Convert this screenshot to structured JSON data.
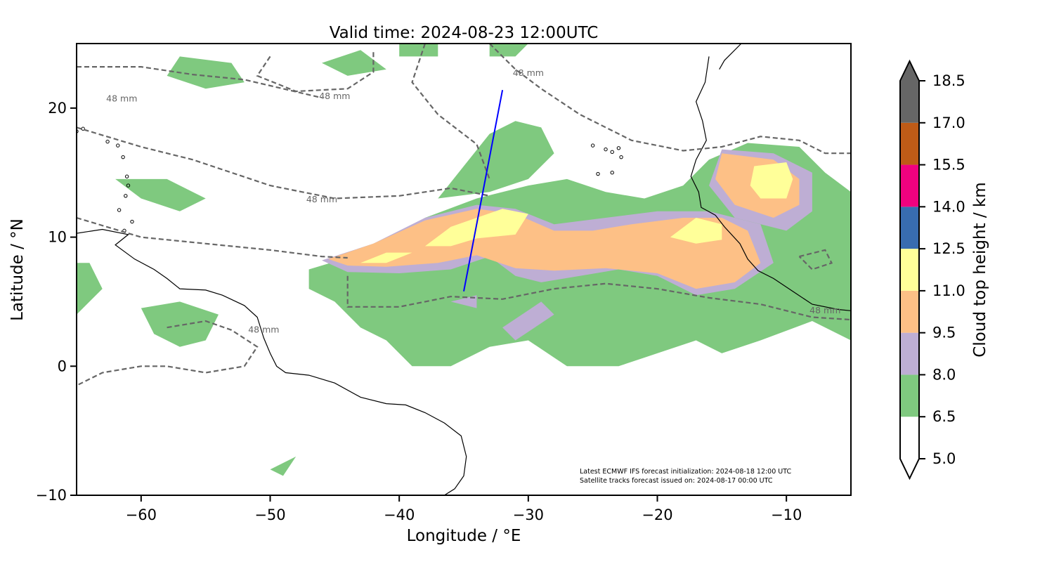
{
  "title": "Valid time: 2024-08-23 12:00UTC",
  "xlabel": "Longitude / °E",
  "ylabel": "Latitude / °N",
  "xlim": [
    -65,
    -5
  ],
  "ylim": [
    -10,
    25
  ],
  "xticks": [
    {
      "value": -60,
      "label": "−60"
    },
    {
      "value": -50,
      "label": "−50"
    },
    {
      "value": -40,
      "label": "−40"
    },
    {
      "value": -30,
      "label": "−30"
    },
    {
      "value": -20,
      "label": "−20"
    },
    {
      "value": -10,
      "label": "−10"
    }
  ],
  "yticks": [
    {
      "value": 20,
      "label": "20"
    },
    {
      "value": 10,
      "label": "10"
    },
    {
      "value": 0,
      "label": "0"
    },
    {
      "value": -10,
      "label": "−10"
    }
  ],
  "contour_label": "48 mm",
  "contour_label_positions": [
    [
      -61.5,
      20.5
    ],
    [
      -45,
      20.7
    ],
    [
      -46,
      12.7
    ],
    [
      -30,
      22.5
    ],
    [
      -7,
      4.1
    ],
    [
      -50.5,
      2.6
    ]
  ],
  "footnote": {
    "line1": "Latest ECMWF IFS forecast initialization: 2024-08-18 12:00 UTC",
    "line2": "Satellite tracks forecast issued on: 2024-08-17 00:00 UTC"
  },
  "satellite_track": [
    [
      -35,
      5.8
    ],
    [
      -32,
      21.4
    ]
  ],
  "colorbar": {
    "label": "Cloud top height / km",
    "extend": "both",
    "levels": [
      "5.0",
      "6.5",
      "8.0",
      "9.5",
      "11.0",
      "12.5",
      "14.0",
      "15.5",
      "17.0",
      "18.5"
    ],
    "colors": [
      "#ffffff",
      "#7fc97f",
      "#beaed4",
      "#fdc086",
      "#ffff99",
      "#386cb0",
      "#f0027f",
      "#bf5b17",
      "#666666"
    ]
  },
  "colors": {
    "coastline": "#000000",
    "contour": "#666666",
    "track": "#0000ff",
    "low_cloud": "#7fc97f",
    "mid_cloud": "#beaed4",
    "high_cloud": "#fdc086",
    "top_cloud": "#ffff99"
  },
  "cloud_regions": {
    "low": [
      [
        [
          -47,
          7.5
        ],
        [
          -42,
          9
        ],
        [
          -38,
          11.5
        ],
        [
          -34,
          13
        ],
        [
          -30,
          14
        ],
        [
          -27,
          14.5
        ],
        [
          -24,
          13.5
        ],
        [
          -21,
          13
        ],
        [
          -18,
          14
        ],
        [
          -16,
          16
        ],
        [
          -13,
          17.3
        ],
        [
          -9,
          17
        ],
        [
          -7,
          15
        ],
        [
          -5,
          13.5
        ],
        [
          -5,
          2
        ],
        [
          -8,
          3.5
        ],
        [
          -12,
          2
        ],
        [
          -15,
          1
        ],
        [
          -17,
          2
        ],
        [
          -20,
          1
        ],
        [
          -23,
          0
        ],
        [
          -27,
          0
        ],
        [
          -30,
          2
        ],
        [
          -33,
          1.5
        ],
        [
          -36,
          0
        ],
        [
          -39,
          0
        ],
        [
          -41,
          2
        ],
        [
          -43,
          3
        ],
        [
          -45,
          5
        ],
        [
          -47,
          6
        ]
      ],
      [
        [
          -37,
          13
        ],
        [
          -35,
          15.5
        ],
        [
          -33,
          18
        ],
        [
          -31,
          19
        ],
        [
          -29,
          18.5
        ],
        [
          -28,
          16.5
        ],
        [
          -30,
          14.5
        ],
        [
          -33,
          13.5
        ]
      ],
      [
        [
          -55,
          2
        ],
        [
          -54,
          4
        ],
        [
          -57,
          5
        ],
        [
          -60,
          4.5
        ],
        [
          -59,
          2.5
        ],
        [
          -57,
          1.5
        ]
      ],
      [
        [
          -65,
          4
        ],
        [
          -63,
          6
        ],
        [
          -64,
          8
        ],
        [
          -65,
          8
        ]
      ],
      [
        [
          -62,
          14.5
        ],
        [
          -58,
          14.5
        ],
        [
          -55,
          13
        ],
        [
          -57,
          12
        ],
        [
          -60,
          13
        ]
      ],
      [
        [
          -57,
          24
        ],
        [
          -53,
          23.5
        ],
        [
          -52,
          22
        ],
        [
          -55,
          21.5
        ],
        [
          -58,
          22.5
        ]
      ],
      [
        [
          -46,
          23.5
        ],
        [
          -43,
          24.5
        ],
        [
          -41,
          23
        ],
        [
          -44,
          22.5
        ]
      ],
      [
        [
          -40,
          25
        ],
        [
          -37,
          25
        ],
        [
          -37,
          24
        ],
        [
          -40,
          24
        ]
      ],
      [
        [
          -33,
          25
        ],
        [
          -30,
          25
        ],
        [
          -31,
          24
        ],
        [
          -33,
          24
        ]
      ],
      [
        [
          -50,
          -8
        ],
        [
          -48,
          -7
        ],
        [
          -49,
          -8.5
        ]
      ]
    ],
    "mid": [
      [
        [
          -46,
          8.2
        ],
        [
          -42,
          9.5
        ],
        [
          -38,
          11.5
        ],
        [
          -34,
          12.5
        ],
        [
          -31,
          12.2
        ],
        [
          -28,
          11
        ],
        [
          -24,
          11.5
        ],
        [
          -20,
          12
        ],
        [
          -16,
          12
        ],
        [
          -12,
          11
        ],
        [
          -11,
          8
        ],
        [
          -14,
          6
        ],
        [
          -17,
          5.5
        ],
        [
          -20,
          7
        ],
        [
          -23,
          7.5
        ],
        [
          -26,
          7
        ],
        [
          -29,
          6.5
        ],
        [
          -31,
          7
        ],
        [
          -33,
          8.5
        ],
        [
          -36,
          7.5
        ],
        [
          -40,
          7.2
        ],
        [
          -44,
          7.3
        ]
      ],
      [
        [
          -15,
          16.8
        ],
        [
          -11,
          16.5
        ],
        [
          -8,
          15
        ],
        [
          -8,
          12
        ],
        [
          -10,
          10.5
        ],
        [
          -14,
          11.5
        ],
        [
          -16,
          14
        ]
      ],
      [
        [
          -34,
          4.5
        ],
        [
          -36,
          5
        ],
        [
          -34,
          5.5
        ]
      ],
      [
        [
          -31,
          2
        ],
        [
          -28,
          4
        ],
        [
          -29,
          5
        ],
        [
          -32,
          3
        ]
      ]
    ],
    "high": [
      [
        [
          -45.5,
          8.3
        ],
        [
          -42,
          9.5
        ],
        [
          -38,
          11.3
        ],
        [
          -34,
          12.2
        ],
        [
          -31,
          11.8
        ],
        [
          -28,
          10.5
        ],
        [
          -25,
          10.5
        ],
        [
          -22,
          11
        ],
        [
          -18,
          11.5
        ],
        [
          -15,
          11.5
        ],
        [
          -13,
          10.5
        ],
        [
          -12,
          8
        ],
        [
          -14,
          6.5
        ],
        [
          -17,
          6
        ],
        [
          -20,
          7.2
        ],
        [
          -24,
          7.6
        ],
        [
          -28,
          7.4
        ],
        [
          -31,
          7.6
        ],
        [
          -34,
          8.6
        ],
        [
          -37,
          8
        ],
        [
          -41,
          7.7
        ],
        [
          -44,
          7.8
        ]
      ],
      [
        [
          -15,
          16.5
        ],
        [
          -11,
          16
        ],
        [
          -9,
          14.5
        ],
        [
          -9,
          12.5
        ],
        [
          -11,
          11.5
        ],
        [
          -14,
          12.5
        ],
        [
          -15.5,
          14.5
        ]
      ]
    ],
    "top": [
      [
        [
          -38,
          9.3
        ],
        [
          -36,
          10.8
        ],
        [
          -34,
          11.5
        ],
        [
          -32,
          12.2
        ],
        [
          -30,
          11.8
        ],
        [
          -31,
          10.2
        ],
        [
          -34,
          9.9
        ],
        [
          -36,
          9.3
        ]
      ],
      [
        [
          -43,
          8
        ],
        [
          -41,
          8.8
        ],
        [
          -39,
          8.8
        ],
        [
          -41,
          8
        ]
      ],
      [
        [
          -19,
          10
        ],
        [
          -17,
          11.5
        ],
        [
          -15,
          11
        ],
        [
          -15,
          9.8
        ],
        [
          -17,
          9.5
        ]
      ],
      [
        [
          -12.5,
          15.5
        ],
        [
          -10,
          15.8
        ],
        [
          -9.5,
          14.5
        ],
        [
          -10,
          13
        ],
        [
          -12,
          13
        ],
        [
          -12.8,
          14
        ]
      ]
    ]
  },
  "precip_contours": [
    [
      [
        -65,
        18.5
      ],
      [
        -60,
        17
      ],
      [
        -56,
        16
      ],
      [
        -50,
        14
      ],
      [
        -45,
        13
      ],
      [
        -40,
        13.2
      ],
      [
        -36,
        13.8
      ],
      [
        -33,
        13.2
      ]
    ],
    [
      [
        -65,
        11.5
      ],
      [
        -60,
        10
      ],
      [
        -55,
        9.5
      ],
      [
        -50,
        9
      ],
      [
        -46,
        8.5
      ],
      [
        -44,
        8.4
      ]
    ],
    [
      [
        -44,
        7
      ],
      [
        -44,
        4.6
      ],
      [
        -40,
        4.6
      ],
      [
        -36,
        5.4
      ],
      [
        -32,
        5.2
      ],
      [
        -28,
        6
      ],
      [
        -24,
        6.4
      ],
      [
        -20,
        6
      ],
      [
        -16,
        5.3
      ],
      [
        -12,
        4.8
      ],
      [
        -8,
        3.8
      ],
      [
        -5,
        3.6
      ]
    ],
    [
      [
        -38,
        25
      ],
      [
        -39,
        22
      ],
      [
        -37,
        19.5
      ],
      [
        -34,
        17.2
      ],
      [
        -33,
        14.5
      ]
    ],
    [
      [
        -33,
        25
      ],
      [
        -31,
        23
      ],
      [
        -29,
        21.5
      ],
      [
        -26,
        19.5
      ],
      [
        -22,
        17.5
      ],
      [
        -18,
        16.7
      ],
      [
        -15,
        17
      ],
      [
        -12,
        17.8
      ],
      [
        -9,
        17.5
      ],
      [
        -7,
        16.5
      ],
      [
        -5,
        16.5
      ]
    ],
    [
      [
        -65,
        23.2
      ],
      [
        -60,
        23.2
      ],
      [
        -56,
        22.6
      ],
      [
        -52,
        22.2
      ],
      [
        -49,
        21.5
      ],
      [
        -46,
        20.8
      ]
    ],
    [
      [
        -50,
        24
      ],
      [
        -51,
        22.5
      ],
      [
        -48,
        21.3
      ],
      [
        -44,
        21.5
      ],
      [
        -42,
        22.8
      ],
      [
        -42,
        24.5
      ]
    ],
    [
      [
        -58,
        3
      ],
      [
        -55,
        3.5
      ],
      [
        -53,
        2.8
      ],
      [
        -51,
        1.5
      ],
      [
        -52,
        0
      ],
      [
        -55,
        -0.5
      ],
      [
        -58,
        0
      ],
      [
        -60,
        0
      ],
      [
        -63,
        -0.5
      ],
      [
        -65,
        -1.5
      ]
    ],
    [
      [
        -9,
        8.5
      ],
      [
        -7,
        9
      ],
      [
        -6.5,
        8
      ],
      [
        -8,
        7.5
      ],
      [
        -9,
        8.5
      ]
    ]
  ],
  "coastline_paths": [
    [
      [
        -65,
        10.3
      ],
      [
        -63,
        10.6
      ],
      [
        -61,
        10.2
      ],
      [
        -62,
        9.4
      ],
      [
        -60.5,
        8.3
      ],
      [
        -59,
        7.5
      ],
      [
        -58,
        6.8
      ],
      [
        -57,
        6
      ],
      [
        -55,
        5.9
      ],
      [
        -53.7,
        5.5
      ],
      [
        -52,
        4.7
      ],
      [
        -51,
        3.8
      ],
      [
        -50.5,
        2.2
      ],
      [
        -50,
        1
      ],
      [
        -49.5,
        0
      ],
      [
        -48.8,
        -0.5
      ],
      [
        -47,
        -0.7
      ],
      [
        -45,
        -1.3
      ],
      [
        -43,
        -2.4
      ],
      [
        -41,
        -2.9
      ],
      [
        -39.5,
        -3
      ],
      [
        -38,
        -3.6
      ],
      [
        -36.5,
        -4.4
      ],
      [
        -35.2,
        -5.4
      ],
      [
        -34.8,
        -7
      ],
      [
        -35,
        -8.5
      ],
      [
        -35.7,
        -9.5
      ],
      [
        -36.5,
        -10
      ]
    ],
    [
      [
        -16,
        24
      ],
      [
        -16.3,
        22
      ],
      [
        -17,
        20.5
      ],
      [
        -16.5,
        19
      ],
      [
        -16.2,
        17.5
      ],
      [
        -17,
        16
      ],
      [
        -17.4,
        14.7
      ],
      [
        -16.8,
        13.5
      ],
      [
        -16.6,
        12.3
      ],
      [
        -15.5,
        11.7
      ],
      [
        -14.8,
        10.8
      ],
      [
        -13.6,
        9.5
      ],
      [
        -13,
        8.3
      ],
      [
        -12.2,
        7.4
      ],
      [
        -11,
        6.8
      ],
      [
        -9.5,
        5.8
      ],
      [
        -8,
        4.8
      ],
      [
        -6,
        4.4
      ],
      [
        -5,
        4.3
      ]
    ],
    [
      [
        -13.5,
        25
      ],
      [
        -14.2,
        24.3
      ],
      [
        -14.8,
        23.7
      ],
      [
        -15.2,
        23
      ]
    ]
  ],
  "islands": [
    [
      -62.6,
      17.4
    ],
    [
      -61.8,
      17.1
    ],
    [
      -61.4,
      16.2
    ],
    [
      -61.1,
      14.7
    ],
    [
      -61,
      14
    ],
    [
      -61.2,
      13.2
    ],
    [
      -61.7,
      12.1
    ],
    [
      -60.7,
      11.2
    ],
    [
      -61.3,
      10.5
    ],
    [
      -65,
      18.2
    ],
    [
      -64.5,
      18.4
    ],
    [
      -24,
      16.8
    ],
    [
      -23.5,
      16.6
    ],
    [
      -23,
      16.9
    ],
    [
      -25,
      17.1
    ],
    [
      -24.6,
      14.9
    ],
    [
      -23.5,
      15
    ],
    [
      -22.8,
      16.2
    ]
  ]
}
